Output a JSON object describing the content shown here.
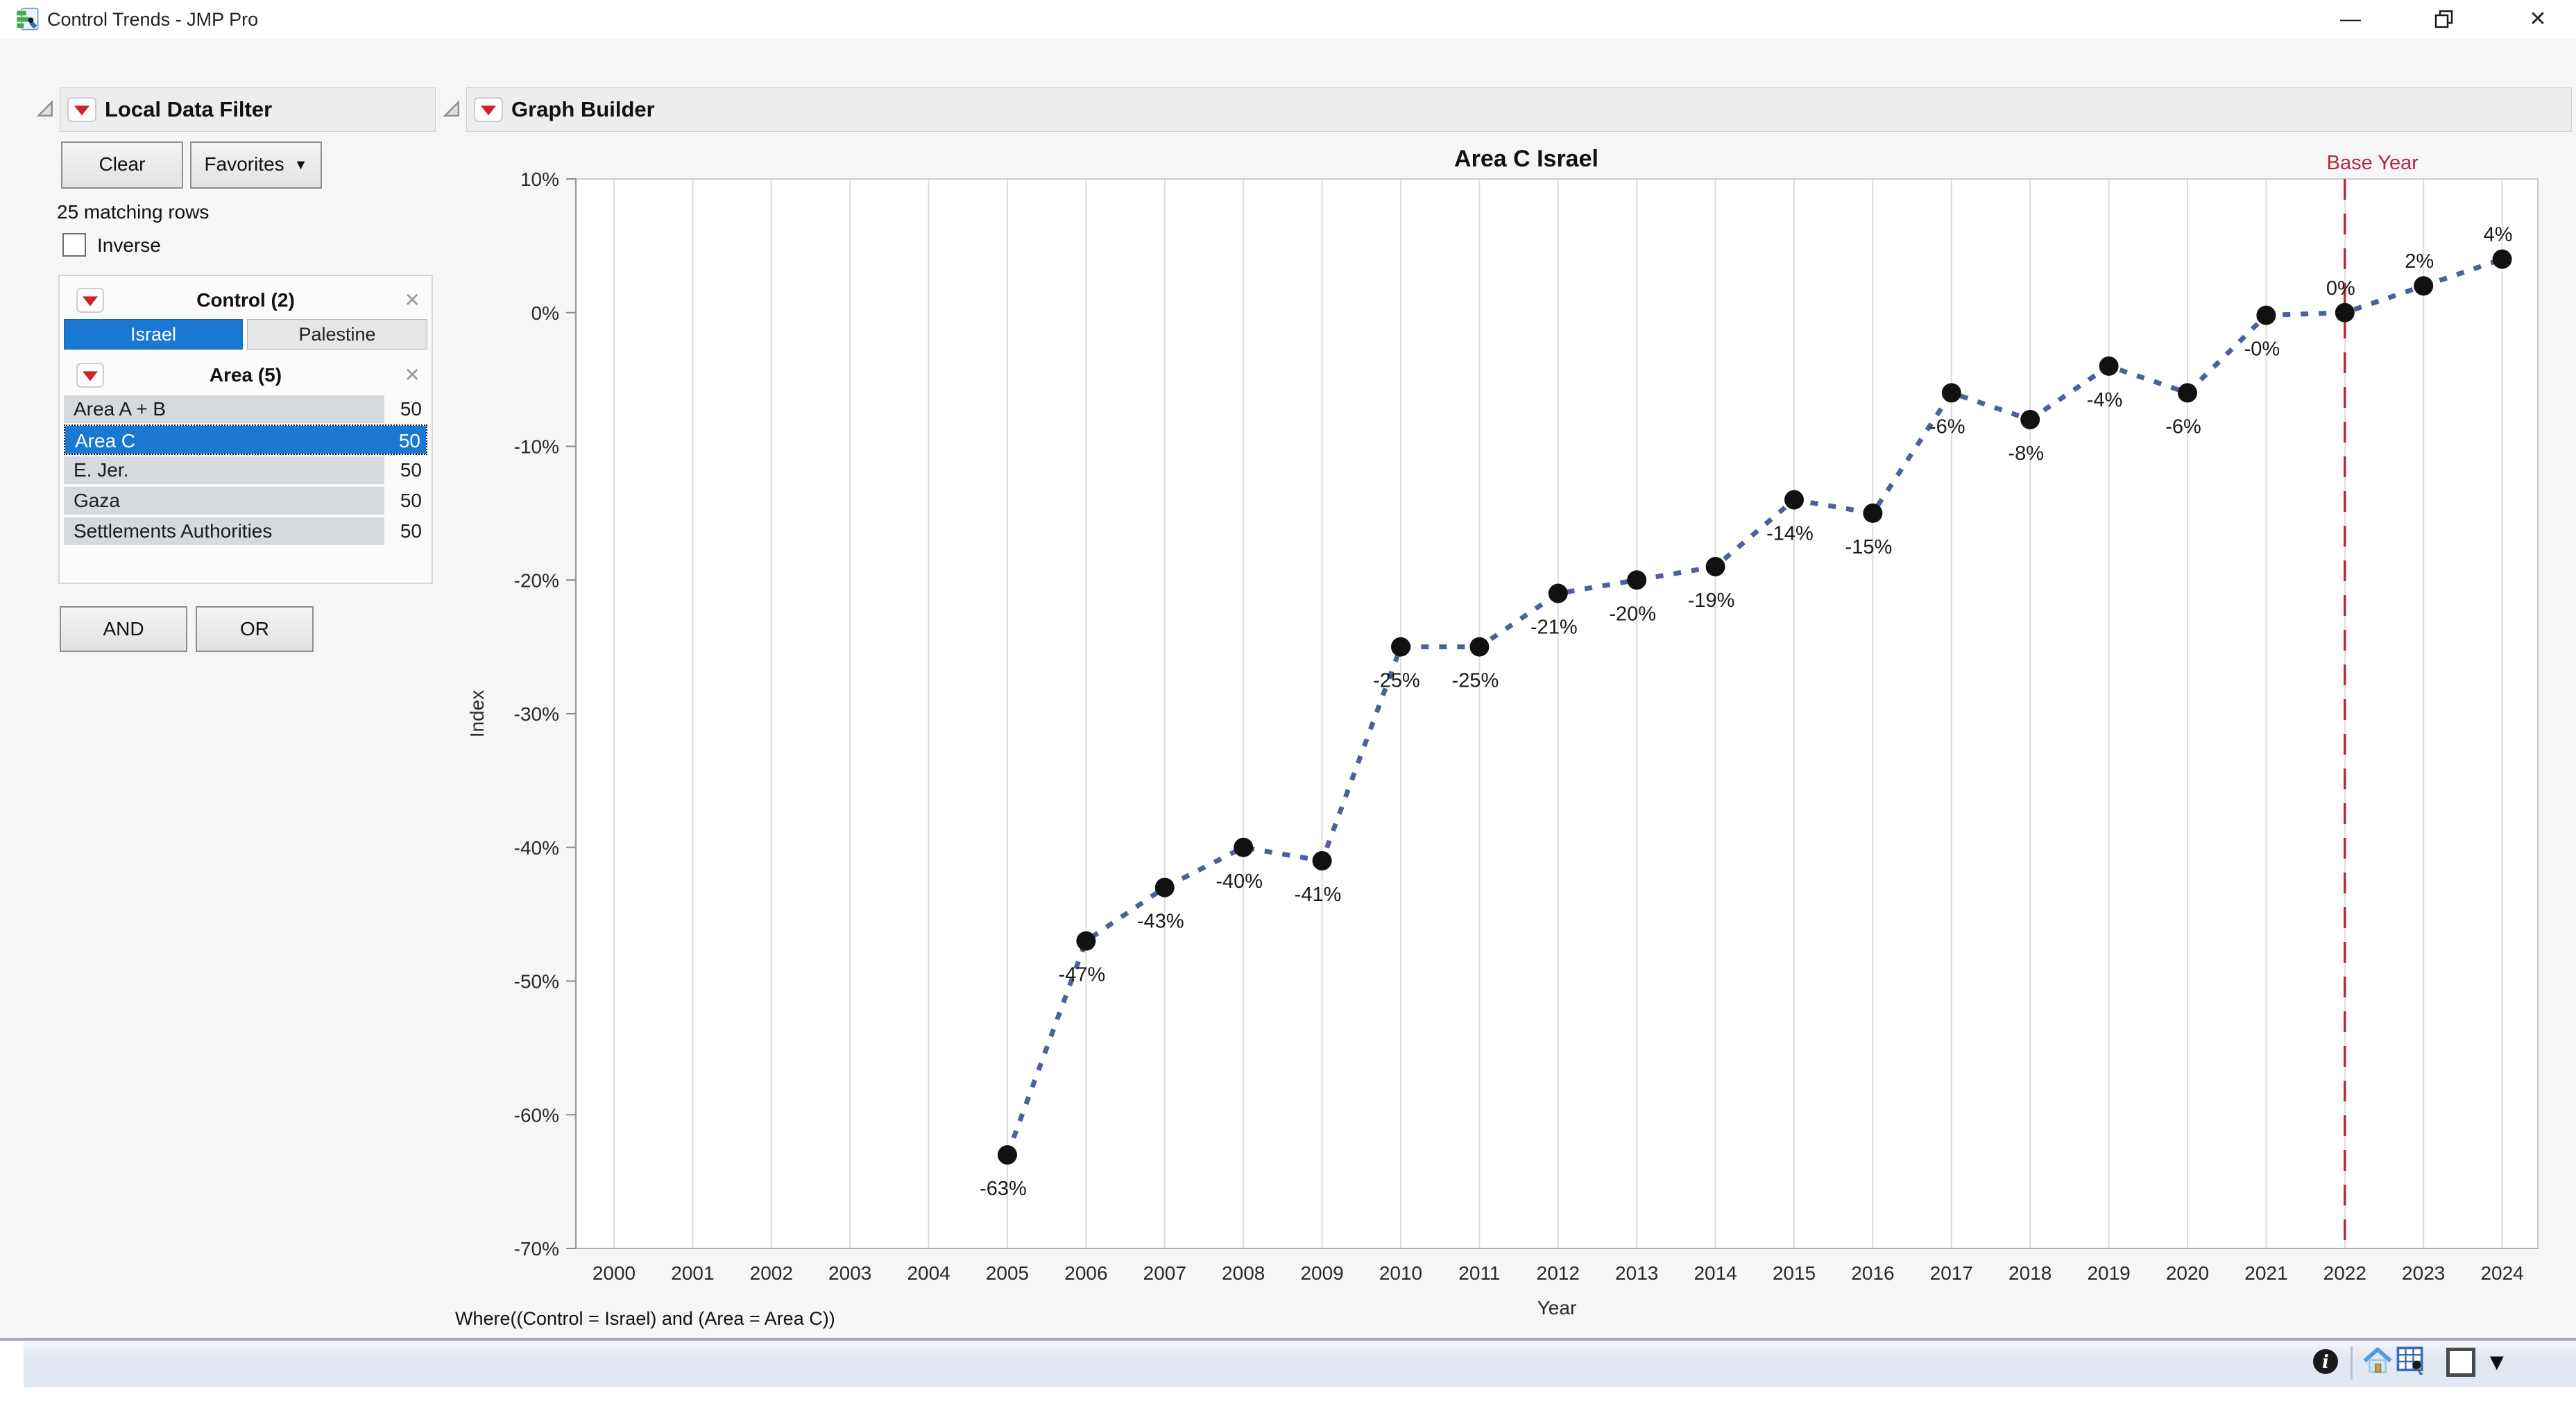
{
  "titlebar": {
    "title": "Control Trends - JMP Pro"
  },
  "glyphs": {
    "minimize": "—",
    "close": "✕",
    "dropdown_small": "▼",
    "remove": "✕",
    "status_dropdown": "▼"
  },
  "colors": {
    "selection_blue": "#1878d2",
    "trend_line_blue": "#4e5f9f",
    "base_year_red": "#b5293b",
    "menu_triangle_red": "#cc2229"
  },
  "filter_panel": {
    "title": "Local Data Filter",
    "clear_label": "Clear",
    "favorites_label": "Favorites",
    "matching_rows": "25 matching rows",
    "inverse_label": "Inverse",
    "control_group": {
      "title": "Control (2)",
      "options": [
        {
          "label": "Israel",
          "selected": true
        },
        {
          "label": "Palestine",
          "selected": false
        }
      ]
    },
    "area_group": {
      "title": "Area (5)",
      "items": [
        {
          "label": "Area A + B",
          "count": "50",
          "selected": false
        },
        {
          "label": "Area C",
          "count": "50",
          "selected": true
        },
        {
          "label": "E. Jer.",
          "count": "50",
          "selected": false
        },
        {
          "label": "Gaza",
          "count": "50",
          "selected": false
        },
        {
          "label": "Settlements Authorities",
          "count": "50",
          "selected": false
        }
      ]
    },
    "and_label": "AND",
    "or_label": "OR"
  },
  "graph_panel": {
    "title": "Graph Builder",
    "where_clause": "Where((Control = Israel) and (Area = Area C))"
  },
  "chart_data": {
    "type": "line",
    "title": "Area C Israel",
    "xlabel": "Year",
    "ylabel": "Index",
    "ylim": [
      -70,
      10
    ],
    "grid": "vertical-only",
    "legend": "none",
    "x_ticks": [
      2000,
      2001,
      2002,
      2003,
      2004,
      2005,
      2006,
      2007,
      2008,
      2009,
      2010,
      2011,
      2012,
      2013,
      2014,
      2015,
      2016,
      2017,
      2018,
      2019,
      2020,
      2021,
      2022,
      2023,
      2024
    ],
    "y_ticks": [
      {
        "value": 10,
        "label": "10%"
      },
      {
        "value": 0,
        "label": "0%"
      },
      {
        "value": -10,
        "label": "-10%"
      },
      {
        "value": -20,
        "label": "-20%"
      },
      {
        "value": -30,
        "label": "-30%"
      },
      {
        "value": -40,
        "label": "-40%"
      },
      {
        "value": -50,
        "label": "-50%"
      },
      {
        "value": -60,
        "label": "-60%"
      },
      {
        "value": -70,
        "label": "-70%"
      }
    ],
    "reference_line": {
      "x": 2022,
      "label": "Base Year",
      "color": "#b5293b",
      "style": "dashed"
    },
    "series": [
      {
        "name": "Area C Israel",
        "color": "#4e5f9f",
        "marker_color": "#111111",
        "line_style": "dotted",
        "points": [
          {
            "x": 2005,
            "y": -63,
            "label": "-63%",
            "label_pos": "below"
          },
          {
            "x": 2006,
            "y": -47,
            "label": "-47%",
            "label_pos": "below"
          },
          {
            "x": 2007,
            "y": -43,
            "label": "-43%",
            "label_pos": "below"
          },
          {
            "x": 2008,
            "y": -40,
            "label": "-40%",
            "label_pos": "below"
          },
          {
            "x": 2009,
            "y": -41,
            "label": "-41%",
            "label_pos": "below"
          },
          {
            "x": 2010,
            "y": -25,
            "label": "-25%",
            "label_pos": "below"
          },
          {
            "x": 2011,
            "y": -25,
            "label": "-25%",
            "label_pos": "below"
          },
          {
            "x": 2012,
            "y": -21,
            "label": "-21%",
            "label_pos": "below"
          },
          {
            "x": 2013,
            "y": -20,
            "label": "-20%",
            "label_pos": "below"
          },
          {
            "x": 2014,
            "y": -19,
            "label": "-19%",
            "label_pos": "below"
          },
          {
            "x": 2015,
            "y": -14,
            "label": "-14%",
            "label_pos": "below"
          },
          {
            "x": 2016,
            "y": -15,
            "label": "-15%",
            "label_pos": "below"
          },
          {
            "x": 2017,
            "y": -6,
            "label": "-6%",
            "label_pos": "below"
          },
          {
            "x": 2018,
            "y": -8,
            "label": "-8%",
            "label_pos": "below"
          },
          {
            "x": 2019,
            "y": -4,
            "label": "-4%",
            "label_pos": "below"
          },
          {
            "x": 2020,
            "y": -6,
            "label": "-6%",
            "label_pos": "below"
          },
          {
            "x": 2021,
            "y": -0.2,
            "label": "-0%",
            "label_pos": "below"
          },
          {
            "x": 2022,
            "y": 0,
            "label": "0%",
            "label_pos": "above"
          },
          {
            "x": 2023,
            "y": 2,
            "label": "2%",
            "label_pos": "above"
          },
          {
            "x": 2024,
            "y": 4,
            "label": "4%",
            "label_pos": "above"
          }
        ]
      }
    ]
  }
}
